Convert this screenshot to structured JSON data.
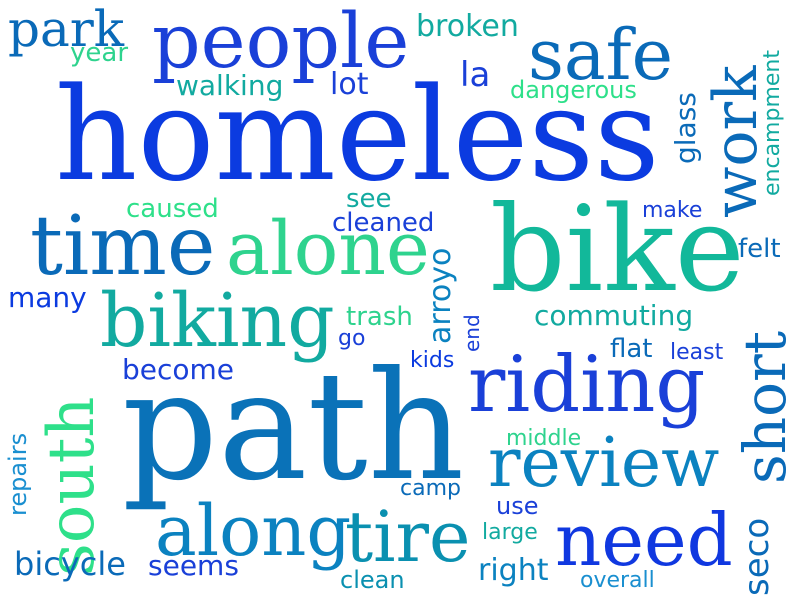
{
  "colors": {
    "blue": "#0b3be0",
    "royal": "#1a40d8",
    "mid_blue": "#0a6ab8",
    "steel": "#0b82c0",
    "teal": "#0aa3a3",
    "green_teal": "#12b89a",
    "mint": "#2ee08a",
    "sky": "#1a8fd0"
  },
  "words": [
    {
      "text": "homeless"
    },
    {
      "text": "path"
    },
    {
      "text": "bike"
    },
    {
      "text": "people"
    },
    {
      "text": "safe"
    },
    {
      "text": "time"
    },
    {
      "text": "alone"
    },
    {
      "text": "riding"
    },
    {
      "text": "biking"
    },
    {
      "text": "review"
    },
    {
      "text": "need"
    },
    {
      "text": "along"
    },
    {
      "text": "tire"
    },
    {
      "text": "work"
    },
    {
      "text": "south"
    },
    {
      "text": "short"
    },
    {
      "text": "park"
    },
    {
      "text": "year"
    },
    {
      "text": "walking"
    },
    {
      "text": "lot"
    },
    {
      "text": "broken"
    },
    {
      "text": "la"
    },
    {
      "text": "dangerous"
    },
    {
      "text": "glass"
    },
    {
      "text": "encampment"
    },
    {
      "text": "caused"
    },
    {
      "text": "see"
    },
    {
      "text": "cleaned"
    },
    {
      "text": "make"
    },
    {
      "text": "felt"
    },
    {
      "text": "many"
    },
    {
      "text": "arroyo"
    },
    {
      "text": "trash"
    },
    {
      "text": "go"
    },
    {
      "text": "end"
    },
    {
      "text": "commuting"
    },
    {
      "text": "become"
    },
    {
      "text": "kids"
    },
    {
      "text": "flat"
    },
    {
      "text": "least"
    },
    {
      "text": "repairs"
    },
    {
      "text": "middle"
    },
    {
      "text": "camp"
    },
    {
      "text": "use"
    },
    {
      "text": "large"
    },
    {
      "text": "bicycle"
    },
    {
      "text": "seems"
    },
    {
      "text": "clean"
    },
    {
      "text": "right"
    },
    {
      "text": "overall"
    },
    {
      "text": "seco"
    }
  ]
}
